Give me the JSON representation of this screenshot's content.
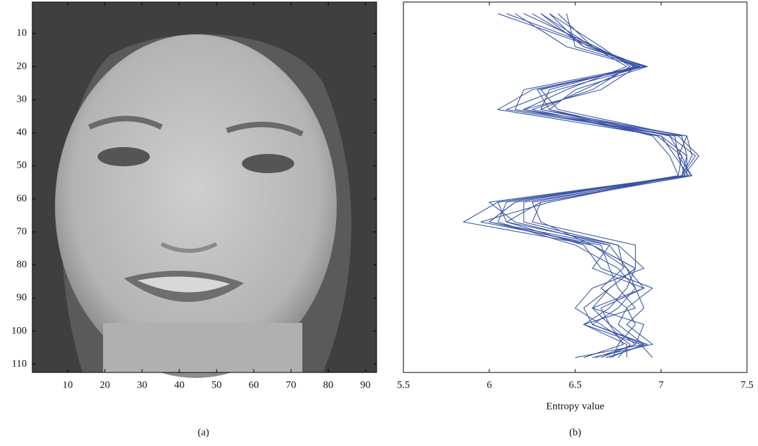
{
  "chart_data": [
    {
      "type": "image",
      "caption": "(a)",
      "xlim": [
        0.5,
        93
      ],
      "xticks": [
        10,
        20,
        30,
        40,
        50,
        60,
        70,
        80,
        90
      ],
      "ylim": [
        0.5,
        112.5
      ],
      "yticks": [
        10,
        20,
        30,
        40,
        50,
        60,
        70,
        80,
        90,
        100,
        110
      ],
      "yreverse": true
    },
    {
      "type": "line",
      "caption": "(b)",
      "xlabel": "Entropy value",
      "orientation": "horizontal",
      "color": "#3953a4",
      "yreverse": true,
      "xlim": [
        5.5,
        7.5
      ],
      "xticks": [
        5.5,
        6,
        6.5,
        7,
        7.5
      ],
      "ylim": [
        0.5,
        112.5
      ],
      "x": [
        4,
        14,
        20,
        27,
        33,
        41,
        47,
        53,
        61,
        67,
        74,
        81,
        87,
        93,
        98,
        104,
        108
      ],
      "series": [
        {
          "values": [
            6.05,
            6.6,
            6.9,
            6.25,
            6.05,
            7.0,
            7.15,
            7.15,
            6.05,
            5.85,
            6.6,
            6.85,
            6.7,
            6.55,
            6.6,
            6.9,
            6.5
          ]
        },
        {
          "values": [
            6.2,
            6.62,
            6.85,
            6.35,
            6.3,
            7.05,
            7.2,
            7.12,
            6.15,
            6.0,
            6.7,
            6.8,
            6.9,
            6.6,
            6.7,
            6.85,
            6.65
          ]
        },
        {
          "values": [
            6.4,
            6.6,
            6.8,
            6.45,
            6.2,
            7.15,
            7.1,
            7.18,
            6.3,
            6.1,
            6.55,
            6.65,
            6.95,
            6.8,
            6.75,
            6.9,
            6.7
          ]
        },
        {
          "values": [
            6.3,
            6.55,
            6.92,
            6.5,
            6.35,
            6.95,
            7.05,
            7.1,
            6.25,
            6.3,
            6.6,
            6.85,
            6.8,
            6.7,
            6.55,
            6.8,
            6.8
          ]
        },
        {
          "values": [
            6.15,
            6.45,
            6.88,
            6.2,
            6.15,
            7.1,
            7.22,
            7.13,
            6.1,
            6.05,
            6.5,
            6.75,
            6.85,
            6.9,
            6.8,
            6.95,
            6.6
          ]
        },
        {
          "values": [
            6.35,
            6.65,
            6.82,
            6.6,
            6.25,
            7.0,
            7.08,
            7.16,
            6.2,
            6.2,
            6.75,
            6.9,
            6.6,
            6.5,
            6.65,
            6.82,
            6.75
          ]
        },
        {
          "values": [
            6.25,
            6.58,
            6.87,
            6.3,
            6.4,
            7.12,
            7.15,
            7.12,
            6.35,
            5.95,
            6.65,
            6.7,
            6.75,
            6.85,
            6.55,
            6.88,
            6.95
          ]
        },
        {
          "values": [
            6.45,
            6.5,
            6.9,
            6.4,
            6.1,
            7.08,
            7.1,
            7.14,
            6.0,
            6.15,
            6.7,
            6.6,
            6.9,
            6.65,
            6.7,
            6.78,
            6.55
          ]
        },
        {
          "values": [
            6.1,
            6.62,
            6.84,
            6.55,
            6.3,
            7.15,
            7.18,
            7.12,
            6.3,
            6.25,
            6.85,
            6.85,
            6.7,
            6.6,
            6.9,
            6.85,
            6.62
          ]
        },
        {
          "values": [
            6.3,
            6.6,
            6.86,
            6.65,
            6.2,
            6.98,
            7.12,
            7.1,
            6.15,
            6.0,
            6.6,
            6.8,
            6.85,
            6.75,
            6.6,
            6.92,
            6.68
          ]
        },
        {
          "values": [
            6.35,
            6.55,
            6.91,
            6.28,
            6.35,
            7.05,
            7.12,
            7.17,
            6.05,
            6.1,
            6.75,
            6.78,
            6.65,
            6.8,
            6.85,
            6.75,
            6.72
          ]
        }
      ]
    }
  ]
}
